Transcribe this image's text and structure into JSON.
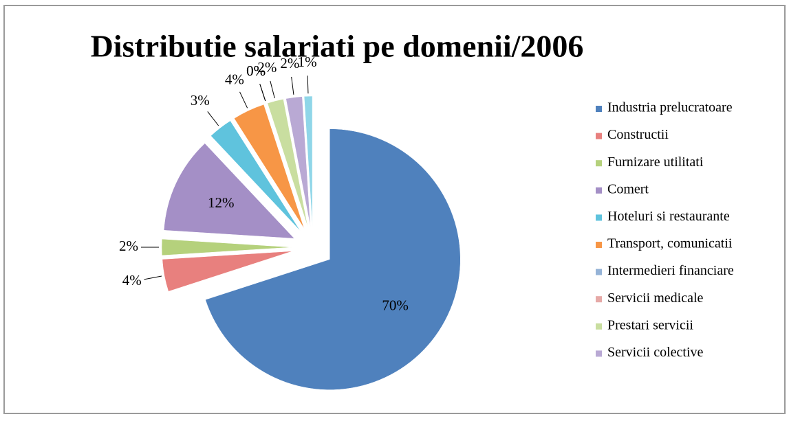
{
  "chart_data": {
    "type": "pie",
    "title": "Distributie salariati pe domenii/2006",
    "categories": [
      "Industria prelucratoare",
      "Constructii",
      "Furnizare utilitati",
      "Comert",
      "Hoteluri si restaurante",
      "Transport, comunicatii",
      "Intermedieri financiare",
      "Servicii medicale",
      "Prestari servicii",
      "Servicii colective",
      null
    ],
    "values": [
      70,
      4,
      2,
      12,
      3,
      4,
      0,
      0,
      2,
      2,
      1
    ],
    "value_labels": [
      "70%",
      "4%",
      "2%",
      "12%",
      "3%",
      "4%",
      "0%",
      "0%",
      "2%",
      "2%",
      "1%"
    ],
    "colors": [
      "#4f81bd",
      "#e8807e",
      "#b5d17c",
      "#a48fc6",
      "#5fc3dd",
      "#f79646",
      "#95b3d7",
      "#e6a9a7",
      "#c9dea0",
      "#b9a9d4",
      "#8fd6e8"
    ],
    "legend": "right"
  }
}
